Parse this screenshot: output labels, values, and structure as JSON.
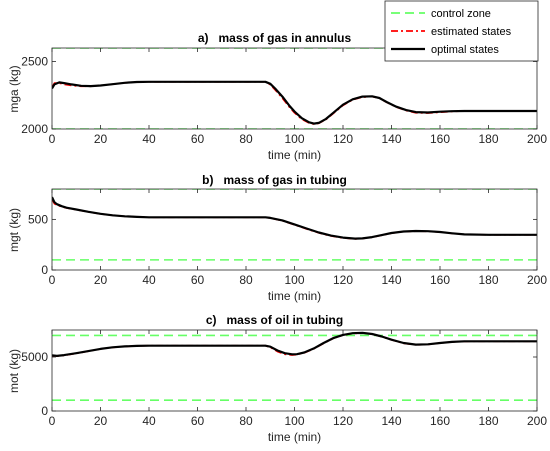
{
  "legend": {
    "position": "top-right",
    "entries": [
      {
        "label": "control zone",
        "color": "#66ff66",
        "style": "dashed"
      },
      {
        "label": "estimated states",
        "color": "#ff0000",
        "style": "dashdot"
      },
      {
        "label": "optimal states",
        "color": "#000000",
        "style": "solid"
      }
    ]
  },
  "chart_data": [
    {
      "type": "line",
      "title": "a)   mass of gas in annulus",
      "xlabel": "time (min)",
      "ylabel": "mga (kg)",
      "xlim": [
        0,
        200
      ],
      "ylim": [
        2000,
        2600
      ],
      "xticks": [
        0,
        20,
        40,
        60,
        80,
        100,
        120,
        140,
        160,
        180,
        200
      ],
      "yticks": [
        2000,
        2500
      ],
      "control_zone": [
        2000,
        2600
      ],
      "series": [
        {
          "name": "optimal states",
          "x": [
            0,
            1,
            3,
            5,
            8,
            12,
            16,
            20,
            25,
            30,
            35,
            40,
            50,
            60,
            70,
            80,
            88,
            90,
            92,
            95,
            98,
            100,
            103,
            106,
            108,
            110,
            113,
            116,
            120,
            124,
            128,
            132,
            135,
            138,
            142,
            146,
            150,
            155,
            160,
            165,
            170,
            180,
            190,
            200
          ],
          "y": [
            2300,
            2330,
            2345,
            2340,
            2330,
            2320,
            2318,
            2322,
            2332,
            2342,
            2348,
            2350,
            2350,
            2350,
            2350,
            2350,
            2350,
            2335,
            2300,
            2240,
            2170,
            2130,
            2080,
            2050,
            2040,
            2045,
            2075,
            2120,
            2180,
            2220,
            2240,
            2242,
            2230,
            2200,
            2165,
            2140,
            2125,
            2122,
            2128,
            2132,
            2133,
            2133,
            2133,
            2133
          ]
        },
        {
          "name": "estimated states",
          "x": [
            0,
            1,
            3,
            5,
            8,
            12,
            16,
            20,
            25,
            30,
            35,
            40,
            50,
            60,
            70,
            80,
            88,
            90,
            92,
            95,
            98,
            100,
            103,
            106,
            108,
            110,
            113,
            116,
            120,
            124,
            128,
            132,
            135,
            138,
            142,
            146,
            150,
            155,
            160,
            165,
            170,
            180,
            190,
            200
          ],
          "y": [
            2310,
            2340,
            2340,
            2330,
            2322,
            2316,
            2316,
            2322,
            2332,
            2342,
            2348,
            2350,
            2350,
            2350,
            2350,
            2350,
            2350,
            2328,
            2290,
            2228,
            2160,
            2120,
            2072,
            2044,
            2036,
            2042,
            2070,
            2115,
            2175,
            2216,
            2236,
            2240,
            2228,
            2198,
            2162,
            2136,
            2120,
            2118,
            2124,
            2130,
            2133,
            2133,
            2133,
            2133
          ]
        }
      ]
    },
    {
      "type": "line",
      "title": "b)   mass of gas in tubing",
      "xlabel": "time (min)",
      "ylabel": "mgt (kg)",
      "xlim": [
        0,
        200
      ],
      "ylim": [
        0,
        800
      ],
      "xticks": [
        0,
        20,
        40,
        60,
        80,
        100,
        120,
        140,
        160,
        180,
        200
      ],
      "yticks": [
        0,
        500
      ],
      "control_zone": [
        100,
        800
      ],
      "series": [
        {
          "name": "optimal states",
          "x": [
            0,
            1,
            2,
            4,
            6,
            10,
            15,
            20,
            25,
            30,
            35,
            40,
            50,
            60,
            70,
            80,
            88,
            90,
            95,
            100,
            105,
            110,
            115,
            120,
            125,
            128,
            132,
            136,
            140,
            145,
            150,
            155,
            160,
            165,
            170,
            180,
            190,
            200
          ],
          "y": [
            720,
            670,
            650,
            630,
            615,
            598,
            575,
            555,
            540,
            530,
            524,
            520,
            520,
            520,
            520,
            520,
            520,
            515,
            490,
            450,
            410,
            370,
            340,
            320,
            310,
            312,
            325,
            345,
            365,
            380,
            385,
            383,
            375,
            362,
            352,
            348,
            348,
            348
          ]
        },
        {
          "name": "estimated states",
          "x": [
            0,
            1,
            2,
            4,
            6,
            10,
            15,
            20,
            25,
            30,
            35,
            40,
            50,
            60,
            70,
            80,
            88,
            90,
            95,
            100,
            105,
            110,
            115,
            120,
            125,
            128,
            132,
            136,
            140,
            145,
            150,
            155,
            160,
            165,
            170,
            180,
            190,
            200
          ],
          "y": [
            700,
            655,
            640,
            625,
            612,
            596,
            574,
            554,
            540,
            530,
            524,
            520,
            520,
            520,
            520,
            520,
            520,
            513,
            486,
            446,
            405,
            366,
            336,
            316,
            307,
            310,
            323,
            343,
            363,
            378,
            383,
            382,
            374,
            361,
            351,
            348,
            348,
            348
          ]
        }
      ]
    },
    {
      "type": "line",
      "title": "c)   mass of oil in tubing",
      "xlabel": "time (min)",
      "ylabel": "mot (kg)",
      "xlim": [
        0,
        200
      ],
      "ylim": [
        0,
        7500
      ],
      "xticks": [
        0,
        20,
        40,
        60,
        80,
        100,
        120,
        140,
        160,
        180,
        200
      ],
      "yticks": [
        0,
        5000
      ],
      "control_zone": [
        1000,
        7000
      ],
      "series": [
        {
          "name": "optimal states",
          "x": [
            0,
            2,
            5,
            10,
            15,
            20,
            25,
            30,
            35,
            40,
            50,
            60,
            70,
            80,
            88,
            90,
            93,
            96,
            99,
            101,
            104,
            108,
            112,
            116,
            120,
            124,
            128,
            132,
            136,
            140,
            145,
            150,
            155,
            160,
            165,
            170,
            180,
            190,
            200
          ],
          "y": [
            5150,
            5100,
            5180,
            5350,
            5550,
            5750,
            5900,
            5980,
            6030,
            6050,
            6050,
            6050,
            6050,
            6050,
            6050,
            5950,
            5600,
            5350,
            5250,
            5260,
            5420,
            5800,
            6300,
            6750,
            7050,
            7200,
            7230,
            7130,
            6900,
            6600,
            6300,
            6150,
            6180,
            6300,
            6400,
            6450,
            6450,
            6450,
            6450
          ]
        },
        {
          "name": "estimated states",
          "x": [
            0,
            2,
            5,
            10,
            15,
            20,
            25,
            30,
            35,
            40,
            50,
            60,
            70,
            80,
            88,
            90,
            93,
            96,
            99,
            101,
            104,
            108,
            112,
            116,
            120,
            124,
            128,
            132,
            136,
            140,
            145,
            150,
            155,
            160,
            165,
            170,
            180,
            190,
            200
          ],
          "y": [
            5050,
            5080,
            5150,
            5330,
            5540,
            5740,
            5890,
            5975,
            6025,
            6050,
            6050,
            6050,
            6050,
            6050,
            6050,
            5900,
            5500,
            5250,
            5180,
            5220,
            5380,
            5760,
            6260,
            6720,
            7020,
            7180,
            7220,
            7120,
            6880,
            6580,
            6270,
            6120,
            6160,
            6290,
            6390,
            6440,
            6450,
            6450,
            6450
          ]
        }
      ]
    }
  ]
}
